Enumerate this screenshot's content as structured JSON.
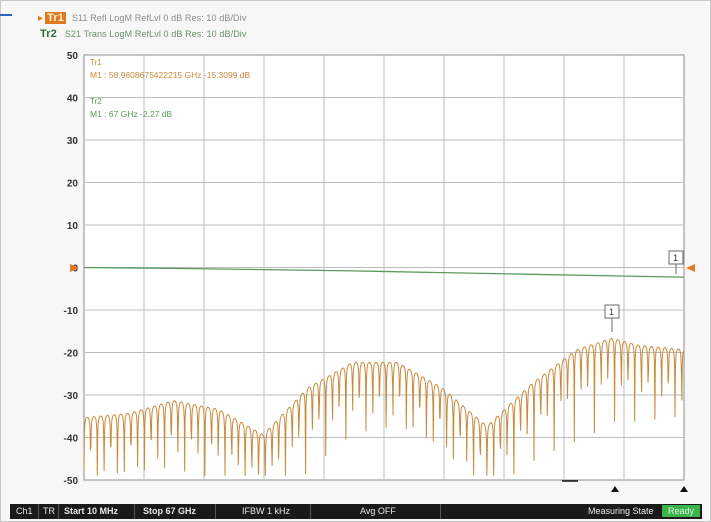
{
  "legend": {
    "tr1": {
      "id": "Tr1",
      "text": "S11 Refl LogM RefLvl 0  dB Res: 10  dB/Div"
    },
    "tr2": {
      "id": "Tr2",
      "text": "S21 Trans LogM RefLvl 0  dB Res: 10  dB/Div"
    }
  },
  "markers": {
    "tr1": {
      "title": "Tr1",
      "text": "M1 :  58.9608675422215 GHz -15.3099  dB"
    },
    "tr2": {
      "title": "Tr2",
      "text": "M1 :  67 GHz -2.27  dB"
    },
    "tag": "1"
  },
  "status": {
    "ch": "Ch1",
    "tr": "TR",
    "start": "Start 10 MHz",
    "stop": "Stop 67 GHz",
    "ifbw": "IFBW 1 kHz",
    "avg": "Avg OFF",
    "state": "Measuring State",
    "ready": "Ready"
  },
  "colors": {
    "s11": "#c98a3a",
    "s21": "#5a9b5a",
    "grid": "#bdbdbd",
    "marker_text_tr1": "#c98a3a",
    "marker_text_tr2": "#5a9b5a"
  },
  "chart_data": {
    "type": "line",
    "title": "",
    "xlabel": "",
    "ylabel": "",
    "xlim": [
      0.01,
      67
    ],
    "ylim": [
      -50,
      50
    ],
    "yticks": [
      50,
      40,
      30,
      20,
      10,
      0,
      -10,
      -20,
      -30,
      -40,
      -50
    ],
    "grid": true,
    "series": [
      {
        "name": "S11",
        "x": [
          0.01,
          5,
          10,
          15,
          20,
          25,
          30,
          35,
          40,
          45,
          50,
          55,
          58.96,
          62,
          67
        ],
        "y": [
          -34,
          -33,
          -30,
          -32,
          -38,
          -27,
          -21,
          -21,
          -27,
          -36,
          -26,
          -18,
          -15.31,
          -17,
          -18
        ]
      },
      {
        "name": "S21",
        "x": [
          0.01,
          10,
          20,
          30,
          40,
          50,
          60,
          67
        ],
        "y": [
          0,
          -0.2,
          -0.5,
          -0.8,
          -1.2,
          -1.6,
          -2.0,
          -2.27
        ]
      }
    ]
  }
}
